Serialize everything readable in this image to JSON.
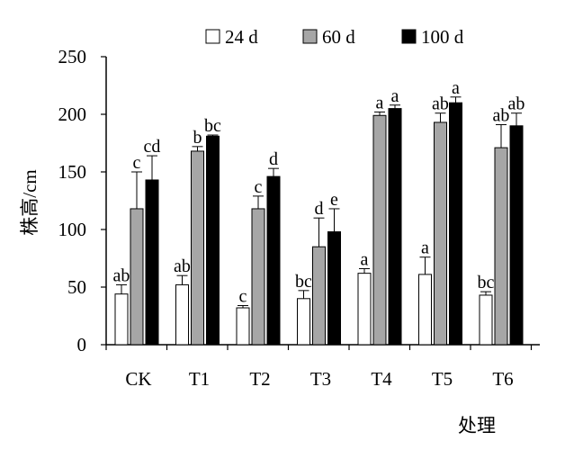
{
  "chart_data": {
    "type": "bar",
    "xlabel": "处理",
    "ylabel": "株高/cm",
    "ylim": [
      0,
      250
    ],
    "yticks": [
      0,
      50,
      100,
      150,
      200,
      250
    ],
    "categories": [
      "CK",
      "T1",
      "T2",
      "T3",
      "T4",
      "T5",
      "T6"
    ],
    "legend_position": "top",
    "series": [
      {
        "name": "24 d",
        "fill": "#ffffff",
        "values": [
          44,
          52,
          32,
          40,
          62,
          61,
          43
        ],
        "errors": [
          8,
          8,
          2,
          7,
          4,
          15,
          3
        ],
        "labels": [
          "ab",
          "ab",
          "c",
          "bc",
          "a",
          "a",
          "bc"
        ]
      },
      {
        "name": "60 d",
        "fill": "#a6a6a6",
        "values": [
          118,
          168,
          118,
          85,
          199,
          193,
          171
        ],
        "errors": [
          32,
          4,
          11,
          25,
          3,
          8,
          20
        ],
        "labels": [
          "c",
          "b",
          "c",
          "d",
          "a",
          "ab",
          "ab"
        ]
      },
      {
        "name": "100 d",
        "fill": "#000000",
        "values": [
          143,
          181,
          146,
          98,
          205,
          210,
          190
        ],
        "errors": [
          21,
          1,
          7,
          20,
          3,
          5,
          11
        ],
        "labels": [
          "cd",
          "bc",
          "d",
          "e",
          "a",
          "a",
          "ab"
        ]
      }
    ]
  }
}
